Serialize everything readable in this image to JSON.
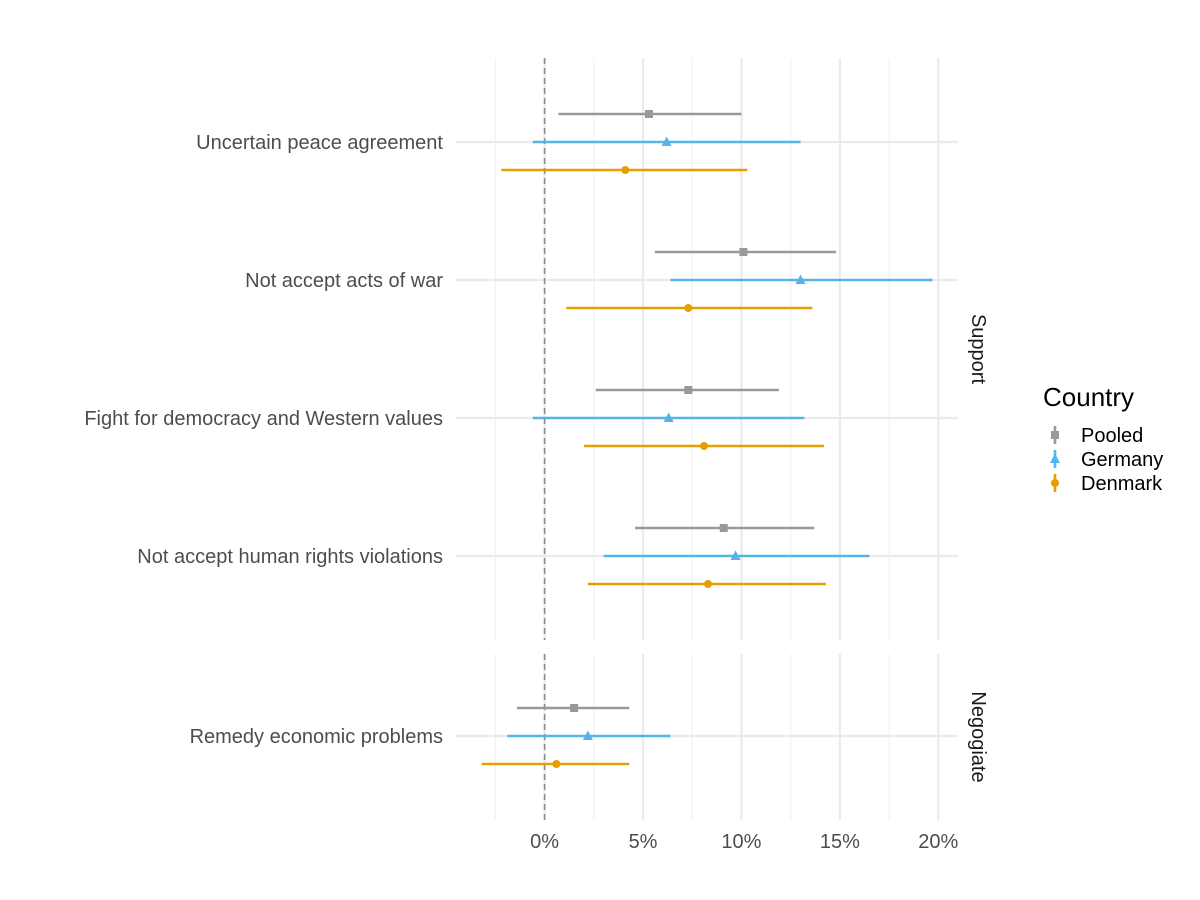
{
  "chart_data": {
    "type": "scatter",
    "subtype": "dot-and-whisker",
    "title": "",
    "xlabel": "",
    "ylabel": "",
    "xlim": [
      -4.5,
      21
    ],
    "x_ticks": [
      0,
      5,
      10,
      15,
      20
    ],
    "x_tick_labels": [
      "0%",
      "5%",
      "10%",
      "15%",
      "20%"
    ],
    "reference_line": 0,
    "legend": {
      "title": "Country",
      "position": "right"
    },
    "colors": {
      "Pooled": "#999999",
      "Germany": "#56B4E9",
      "Denmark": "#E69F00"
    },
    "panels": [
      {
        "strip": "Support",
        "rows": [
          {
            "label": "Uncertain peace agreement",
            "points": [
              {
                "series": "Pooled",
                "estimate": 5.3,
                "low": 0.7,
                "high": 10.0
              },
              {
                "series": "Germany",
                "estimate": 6.2,
                "low": -0.6,
                "high": 13.0
              },
              {
                "series": "Denmark",
                "estimate": 4.1,
                "low": -2.2,
                "high": 10.3
              }
            ]
          },
          {
            "label": "Not accept acts of war",
            "points": [
              {
                "series": "Pooled",
                "estimate": 10.1,
                "low": 5.6,
                "high": 14.8
              },
              {
                "series": "Germany",
                "estimate": 13.0,
                "low": 6.4,
                "high": 19.7
              },
              {
                "series": "Denmark",
                "estimate": 7.3,
                "low": 1.1,
                "high": 13.6
              }
            ]
          },
          {
            "label": "Fight for democracy and Western values",
            "points": [
              {
                "series": "Pooled",
                "estimate": 7.3,
                "low": 2.6,
                "high": 11.9
              },
              {
                "series": "Germany",
                "estimate": 6.3,
                "low": -0.6,
                "high": 13.2
              },
              {
                "series": "Denmark",
                "estimate": 8.1,
                "low": 2.0,
                "high": 14.2
              }
            ]
          },
          {
            "label": "Not accept human rights violations",
            "points": [
              {
                "series": "Pooled",
                "estimate": 9.1,
                "low": 4.6,
                "high": 13.7
              },
              {
                "series": "Germany",
                "estimate": 9.7,
                "low": 3.0,
                "high": 16.5
              },
              {
                "series": "Denmark",
                "estimate": 8.3,
                "low": 2.2,
                "high": 14.3
              }
            ]
          }
        ]
      },
      {
        "strip": "Negogiate",
        "rows": [
          {
            "label": "Remedy economic problems",
            "points": [
              {
                "series": "Pooled",
                "estimate": 1.5,
                "low": -1.4,
                "high": 4.3
              },
              {
                "series": "Germany",
                "estimate": 2.2,
                "low": -1.9,
                "high": 6.4
              },
              {
                "series": "Denmark",
                "estimate": 0.6,
                "low": -3.2,
                "high": 4.3
              }
            ]
          }
        ]
      }
    ],
    "series": [
      {
        "name": "Pooled",
        "shape": "square"
      },
      {
        "name": "Germany",
        "shape": "triangle"
      },
      {
        "name": "Denmark",
        "shape": "circle"
      }
    ]
  }
}
